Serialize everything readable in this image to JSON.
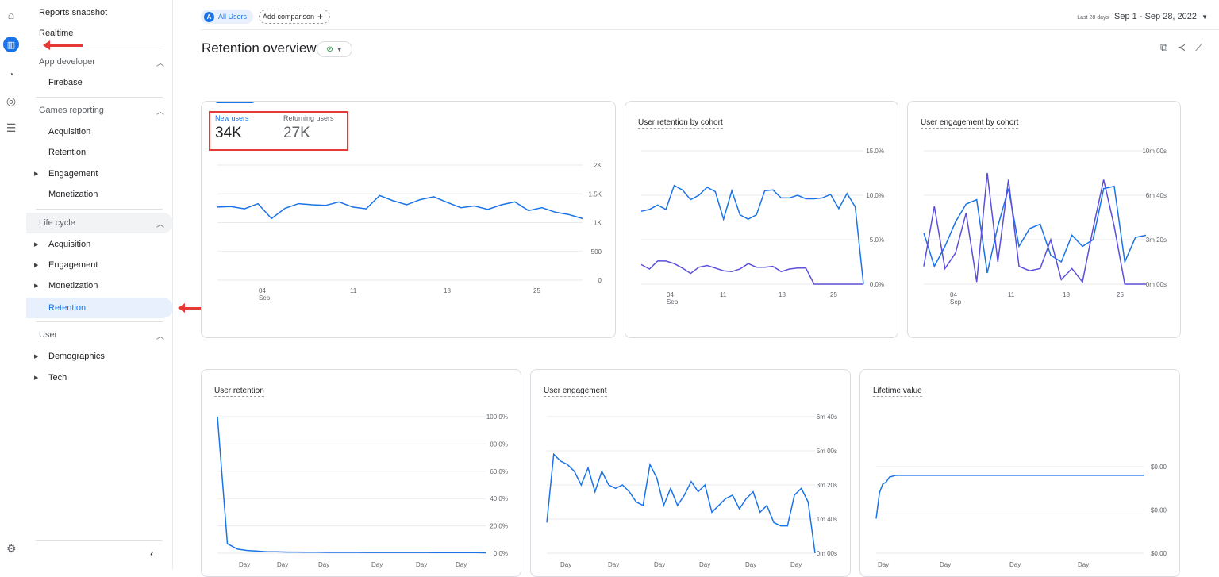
{
  "rail": {
    "icons": [
      "home-icon",
      "reports-icon",
      "explore-icon",
      "advertising-icon",
      "configure-icon"
    ]
  },
  "sidebar": {
    "top_items": [
      "Reports snapshot",
      "Realtime"
    ],
    "groups": [
      {
        "label": "App developer",
        "items": [
          {
            "label": "Firebase",
            "expandable": false
          }
        ]
      },
      {
        "label": "Games reporting",
        "items": [
          {
            "label": "Acquisition",
            "expandable": false
          },
          {
            "label": "Retention",
            "expandable": false
          },
          {
            "label": "Engagement",
            "expandable": true
          },
          {
            "label": "Monetization",
            "expandable": false
          }
        ]
      },
      {
        "label": "Life cycle",
        "items": [
          {
            "label": "Acquisition",
            "expandable": true
          },
          {
            "label": "Engagement",
            "expandable": true
          },
          {
            "label": "Monetization",
            "expandable": true
          },
          {
            "label": "Retention",
            "expandable": false,
            "active": true
          }
        ]
      },
      {
        "label": "User",
        "items": [
          {
            "label": "Demographics",
            "expandable": true
          },
          {
            "label": "Tech",
            "expandable": true
          }
        ]
      }
    ]
  },
  "topbar": {
    "comparison_badge": "A",
    "comparison_label": "All Users",
    "add_comparison": "Add comparison",
    "date_prefix": "Last 28 days",
    "date_range": "Sep 1 - Sep 28, 2022"
  },
  "page": {
    "title": "Retention overview"
  },
  "accent_color": "#1a73e8",
  "secondary_series_color": "#5b4fdb",
  "annotation_color": "#e53935",
  "metrics": {
    "new_users_label": "New users",
    "new_users_value": "34K",
    "returning_users_label": "Returning users",
    "returning_users_value": "27K"
  },
  "chart_data": [
    {
      "type": "line",
      "id": "users",
      "title": "",
      "x": [
        "Sep 1",
        "Sep 2",
        "Sep 3",
        "Sep 4",
        "Sep 5",
        "Sep 6",
        "Sep 7",
        "Sep 8",
        "Sep 9",
        "Sep 10",
        "Sep 11",
        "Sep 12",
        "Sep 13",
        "Sep 14",
        "Sep 15",
        "Sep 16",
        "Sep 17",
        "Sep 18",
        "Sep 19",
        "Sep 20",
        "Sep 21",
        "Sep 22",
        "Sep 23",
        "Sep 24",
        "Sep 25",
        "Sep 26",
        "Sep 27",
        "Sep 28"
      ],
      "x_tick_labels": [
        "04\nSep",
        "11",
        "18",
        "25"
      ],
      "y_tick_labels": [
        "2K",
        "1.5K",
        "1K",
        "500",
        "0"
      ],
      "ylim": [
        0,
        2000
      ],
      "series": [
        {
          "values": [
            1270,
            1280,
            1240,
            1330,
            1070,
            1250,
            1330,
            1310,
            1300,
            1360,
            1270,
            1240,
            1470,
            1380,
            1310,
            1400,
            1450,
            1350,
            1260,
            1290,
            1230,
            1310,
            1360,
            1210,
            1260,
            1180,
            1140,
            1070
          ]
        }
      ]
    },
    {
      "type": "line",
      "id": "retention_by_cohort",
      "title": "User retention by cohort",
      "y_tick_labels": [
        "15.0%",
        "10.0%",
        "5.0%",
        "0.0%"
      ],
      "ylim": [
        0,
        15
      ],
      "x_tick_labels": [
        "04\nSep",
        "11",
        "18",
        "25"
      ],
      "series": [
        {
          "values": [
            8.2,
            8.4,
            8.9,
            8.4,
            11.1,
            10.6,
            9.5,
            10.0,
            10.9,
            10.4,
            7.3,
            10.5,
            7.8,
            7.3,
            7.8,
            10.5,
            10.6,
            9.7,
            9.7,
            10.0,
            9.6,
            9.6,
            9.7,
            10.1,
            8.5,
            10.2,
            8.7,
            0.0
          ]
        },
        {
          "values": [
            2.2,
            1.7,
            2.6,
            2.6,
            2.3,
            1.8,
            1.2,
            1.9,
            2.1,
            1.8,
            1.5,
            1.4,
            1.7,
            2.3,
            1.9,
            1.9,
            2.0,
            1.4,
            1.7,
            1.8,
            1.8,
            0.0,
            0.0,
            0.0,
            0.0,
            0.0,
            0.0,
            0.0
          ]
        }
      ]
    },
    {
      "type": "line",
      "id": "engagement_by_cohort",
      "title": "User engagement by cohort",
      "y_tick_labels": [
        "10m 00s",
        "6m 40s",
        "3m 20s",
        "0m 00s"
      ],
      "ylim": [
        0,
        600
      ],
      "x_tick_labels": [
        "04\nSep",
        "11",
        "18",
        "25"
      ],
      "series": [
        {
          "values": [
            230,
            80,
            170,
            280,
            360,
            380,
            50,
            260,
            430,
            170,
            250,
            270,
            130,
            100,
            220,
            170,
            200,
            430,
            440,
            100,
            210,
            220
          ]
        },
        {
          "values": [
            80,
            350,
            70,
            140,
            320,
            10,
            500,
            100,
            470,
            80,
            60,
            70,
            200,
            20,
            70,
            10,
            250,
            470,
            260,
            0,
            0,
            0
          ]
        }
      ]
    },
    {
      "type": "line",
      "id": "user_retention",
      "title": "User retention",
      "y_tick_labels": [
        "100.0%",
        "80.0%",
        "60.0%",
        "40.0%",
        "20.0%",
        "0.0%"
      ],
      "ylim": [
        0,
        100
      ],
      "x_tick_labels": [
        "Day",
        "Day",
        "Day",
        "Day",
        "Day",
        "Day"
      ],
      "series": [
        {
          "values": [
            100,
            7,
            3,
            2,
            1.5,
            1,
            1,
            0.8,
            0.8,
            0.7,
            0.7,
            0.6,
            0.6,
            0.6,
            0.6,
            0.5,
            0.5,
            0.5,
            0.5,
            0.5,
            0.5,
            0.5,
            0.4,
            0.4,
            0.4,
            0.4,
            0.4,
            0.3
          ]
        }
      ]
    },
    {
      "type": "line",
      "id": "user_engagement",
      "title": "User engagement",
      "y_tick_labels": [
        "6m 40s",
        "5m 00s",
        "3m 20s",
        "1m 40s",
        "0m 00s"
      ],
      "ylim": [
        0,
        400
      ],
      "x_tick_labels": [
        "Day",
        "Day",
        "Day",
        "Day",
        "Day",
        "Day"
      ],
      "series": [
        {
          "values": [
            90,
            290,
            270,
            260,
            240,
            200,
            250,
            180,
            240,
            200,
            190,
            200,
            180,
            150,
            140,
            260,
            220,
            140,
            190,
            140,
            170,
            210,
            180,
            200,
            120,
            140,
            160,
            170,
            130,
            160,
            180,
            120,
            140,
            90,
            80,
            80,
            170,
            190,
            150,
            0
          ]
        }
      ]
    },
    {
      "type": "line",
      "id": "lifetime_value",
      "title": "Lifetime value",
      "y_tick_labels": [
        "$0.00",
        "$0.00",
        "$0.00"
      ],
      "x_tick_labels": [
        "Day",
        "Day",
        "Day",
        "Day"
      ],
      "series": [
        {
          "values": [
            40,
            70,
            80,
            82,
            88,
            89,
            90,
            90,
            90,
            90,
            90,
            90,
            90,
            90,
            90,
            90,
            90,
            90,
            90,
            90,
            90,
            90,
            90,
            90,
            90,
            90,
            90,
            90,
            90,
            90,
            90,
            90,
            90,
            90,
            90,
            90,
            90,
            90,
            90,
            90,
            90,
            90,
            90,
            90,
            90,
            90,
            90,
            90,
            90,
            90,
            90,
            90,
            90,
            90,
            90,
            90,
            90,
            90,
            90,
            90,
            90,
            90,
            90,
            90,
            90,
            90,
            90,
            90,
            90,
            90,
            90,
            90,
            90,
            90,
            90,
            90,
            90,
            90,
            90,
            90,
            90,
            90
          ]
        }
      ]
    }
  ]
}
